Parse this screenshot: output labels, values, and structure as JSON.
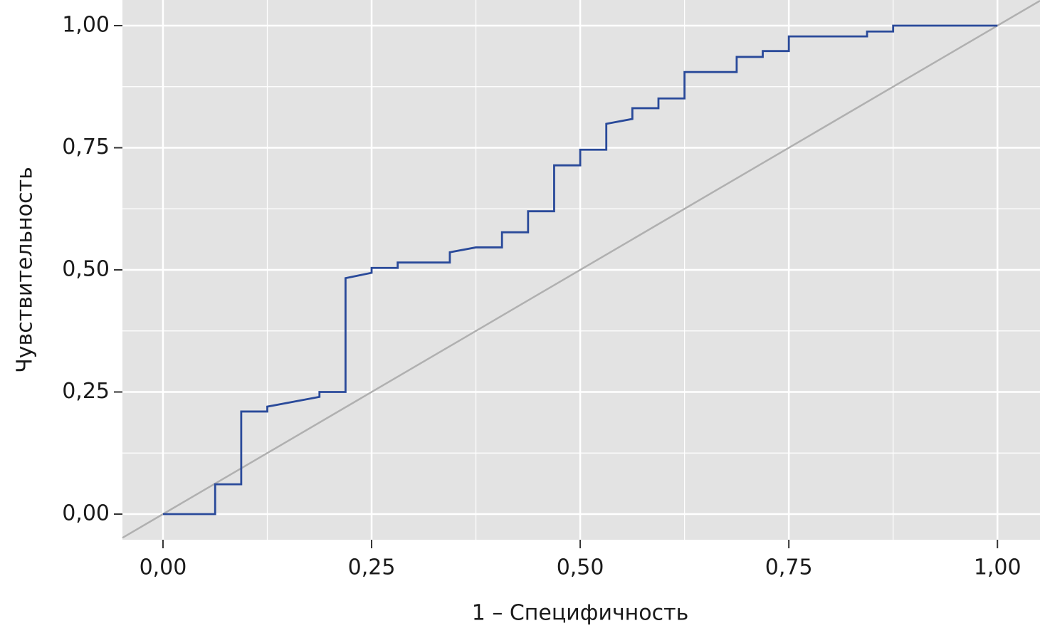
{
  "chart_data": {
    "type": "line",
    "x_label": "1 – Специфичность",
    "y_label": "Чувствительность",
    "x": [
      0,
      0.0625,
      0.0625,
      0.09375,
      0.09375,
      0.125,
      0.125,
      0.1875,
      0.1875,
      0.21875,
      0.21875,
      0.25,
      0.25,
      0.28125,
      0.28125,
      0.34375,
      0.34375,
      0.375,
      0.40625,
      0.40625,
      0.4375,
      0.4375,
      0.46875,
      0.46875,
      0.5,
      0.5,
      0.53125,
      0.53125,
      0.5625,
      0.5625,
      0.59375,
      0.59375,
      0.625,
      0.625,
      0.6875,
      0.6875,
      0.71875,
      0.71875,
      0.75,
      0.75,
      0.84375,
      0.84375,
      0.875,
      0.875,
      1
    ],
    "values": [
      0,
      0,
      0.061,
      0.061,
      0.21,
      0.21,
      0.22,
      0.24,
      0.25,
      0.25,
      0.483,
      0.494,
      0.504,
      0.504,
      0.515,
      0.515,
      0.536,
      0.546,
      0.546,
      0.577,
      0.577,
      0.62,
      0.62,
      0.714,
      0.714,
      0.746,
      0.746,
      0.799,
      0.809,
      0.831,
      0.831,
      0.851,
      0.851,
      0.905,
      0.905,
      0.936,
      0.936,
      0.948,
      0.948,
      0.978,
      0.978,
      0.988,
      0.988,
      1,
      1
    ],
    "color": "#2a4a9a",
    "diagonal": true,
    "diagonal_color": "#b0b0b0",
    "xlim": [
      -0.0486,
      1.051
    ],
    "ylim": [
      -0.0525,
      1.0525
    ],
    "xticks": [
      {
        "value": 0,
        "label": "0,00"
      },
      {
        "value": 0.25,
        "label": "0,25"
      },
      {
        "value": 0.5,
        "label": "0,50"
      },
      {
        "value": 0.75,
        "label": "0,75"
      },
      {
        "value": 1,
        "label": "1,00"
      }
    ],
    "yticks": [
      {
        "value": 0,
        "label": "0,00"
      },
      {
        "value": 0.25,
        "label": "0,25"
      },
      {
        "value": 0.5,
        "label": "0,50"
      },
      {
        "value": 0.75,
        "label": "0,75"
      },
      {
        "value": 1,
        "label": "1,00"
      }
    ],
    "x_minor_ticks": [
      0.125,
      0.375,
      0.625,
      0.875
    ],
    "y_minor_ticks": [
      0.125,
      0.375,
      0.625,
      0.875
    ],
    "grid": true,
    "background": "#e3e3e3"
  }
}
